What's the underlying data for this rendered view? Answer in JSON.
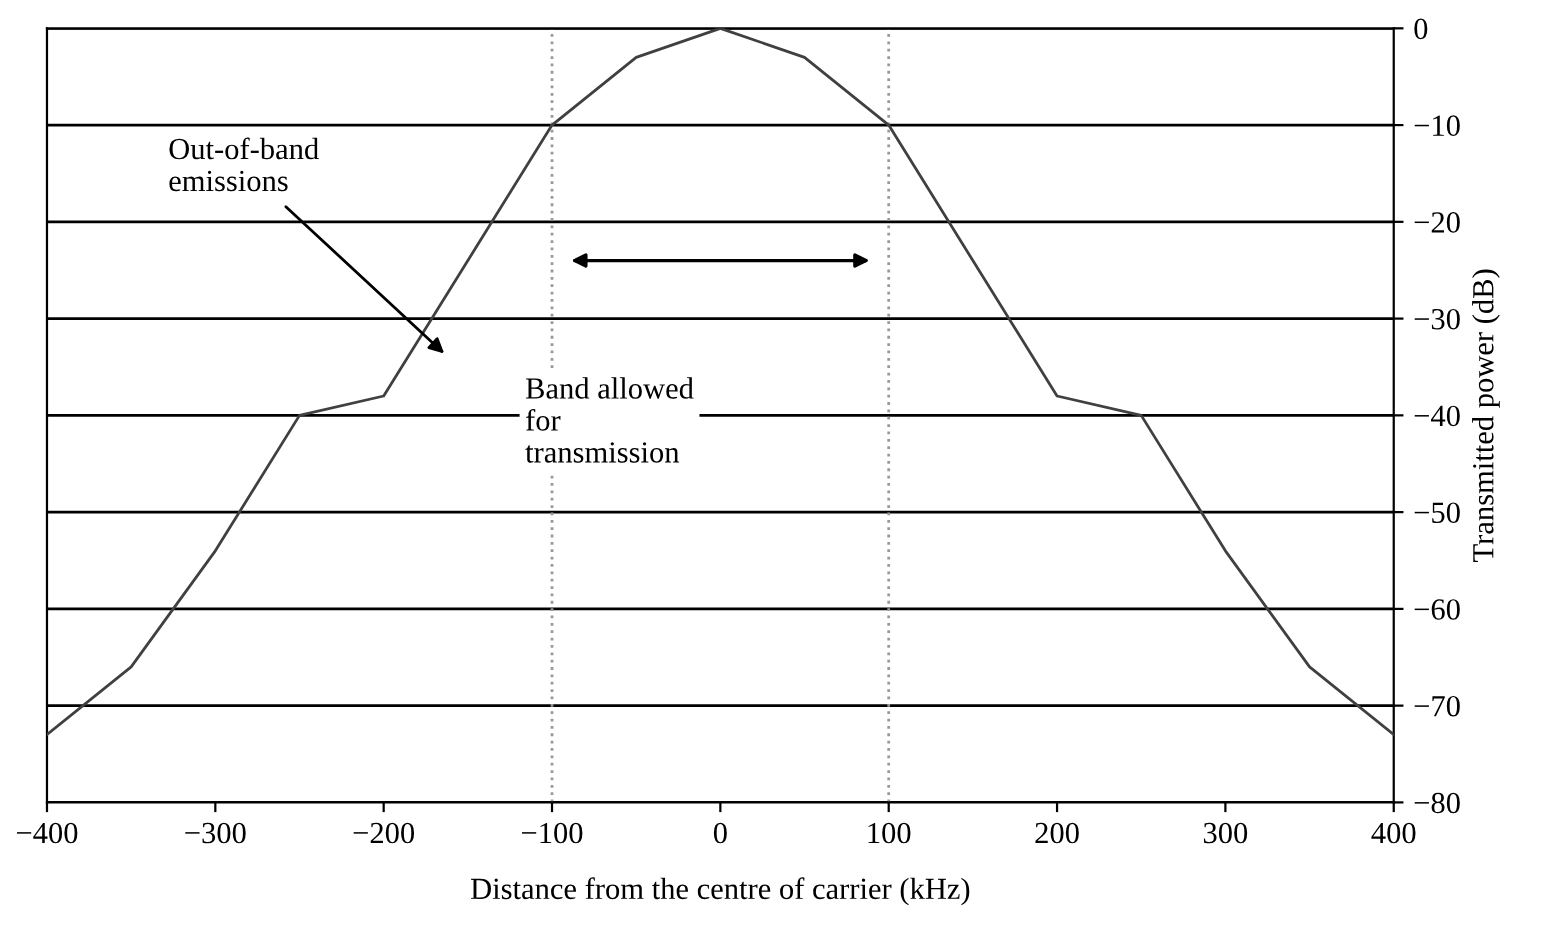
{
  "chart_data": {
    "type": "line",
    "xlabel": "Distance from the centre of carrier (kHz)",
    "ylabel": "Transmitted power (dB)",
    "x": [
      -400,
      -350,
      -300,
      -250,
      -200,
      -100,
      -50,
      0,
      50,
      100,
      200,
      250,
      300,
      350,
      400
    ],
    "series": [
      {
        "color": "#404040",
        "values": [
          -73,
          -66,
          -54,
          -40,
          -38,
          -10,
          -3,
          0,
          -3,
          -10,
          -38,
          -40,
          -54,
          -66,
          -73
        ]
      }
    ],
    "xlim": [
      -400,
      400
    ],
    "xticks": [
      {
        "value": -400,
        "label": "−400"
      },
      {
        "value": -300,
        "label": "−300"
      },
      {
        "value": -200,
        "label": "−200"
      },
      {
        "value": -100,
        "label": "−100"
      },
      0,
      100,
      200,
      300,
      400
    ],
    "ylim": [
      -80,
      0
    ],
    "yticks": [
      {
        "value": -80,
        "label": "−80"
      },
      {
        "value": -70,
        "label": "−70"
      },
      {
        "value": -60,
        "label": "−60"
      },
      {
        "value": -50,
        "label": "−50"
      },
      {
        "value": -40,
        "label": "−40"
      },
      {
        "value": -30,
        "label": "−30"
      },
      {
        "value": -20,
        "label": "−20"
      },
      {
        "value": -10,
        "label": "−10"
      },
      0
    ],
    "grid": "y",
    "marker": "none",
    "line_style": "solid",
    "ref_lines": [
      {
        "axis": "x",
        "value": -100,
        "line_style": "dotted",
        "color": "#999999"
      },
      {
        "axis": "x",
        "value": 100,
        "line_style": "dotted",
        "color": "#999999"
      }
    ],
    "annotations": [
      "Out-of-band\nemissions",
      "Band allowed\nfor\ntransmission"
    ]
  }
}
